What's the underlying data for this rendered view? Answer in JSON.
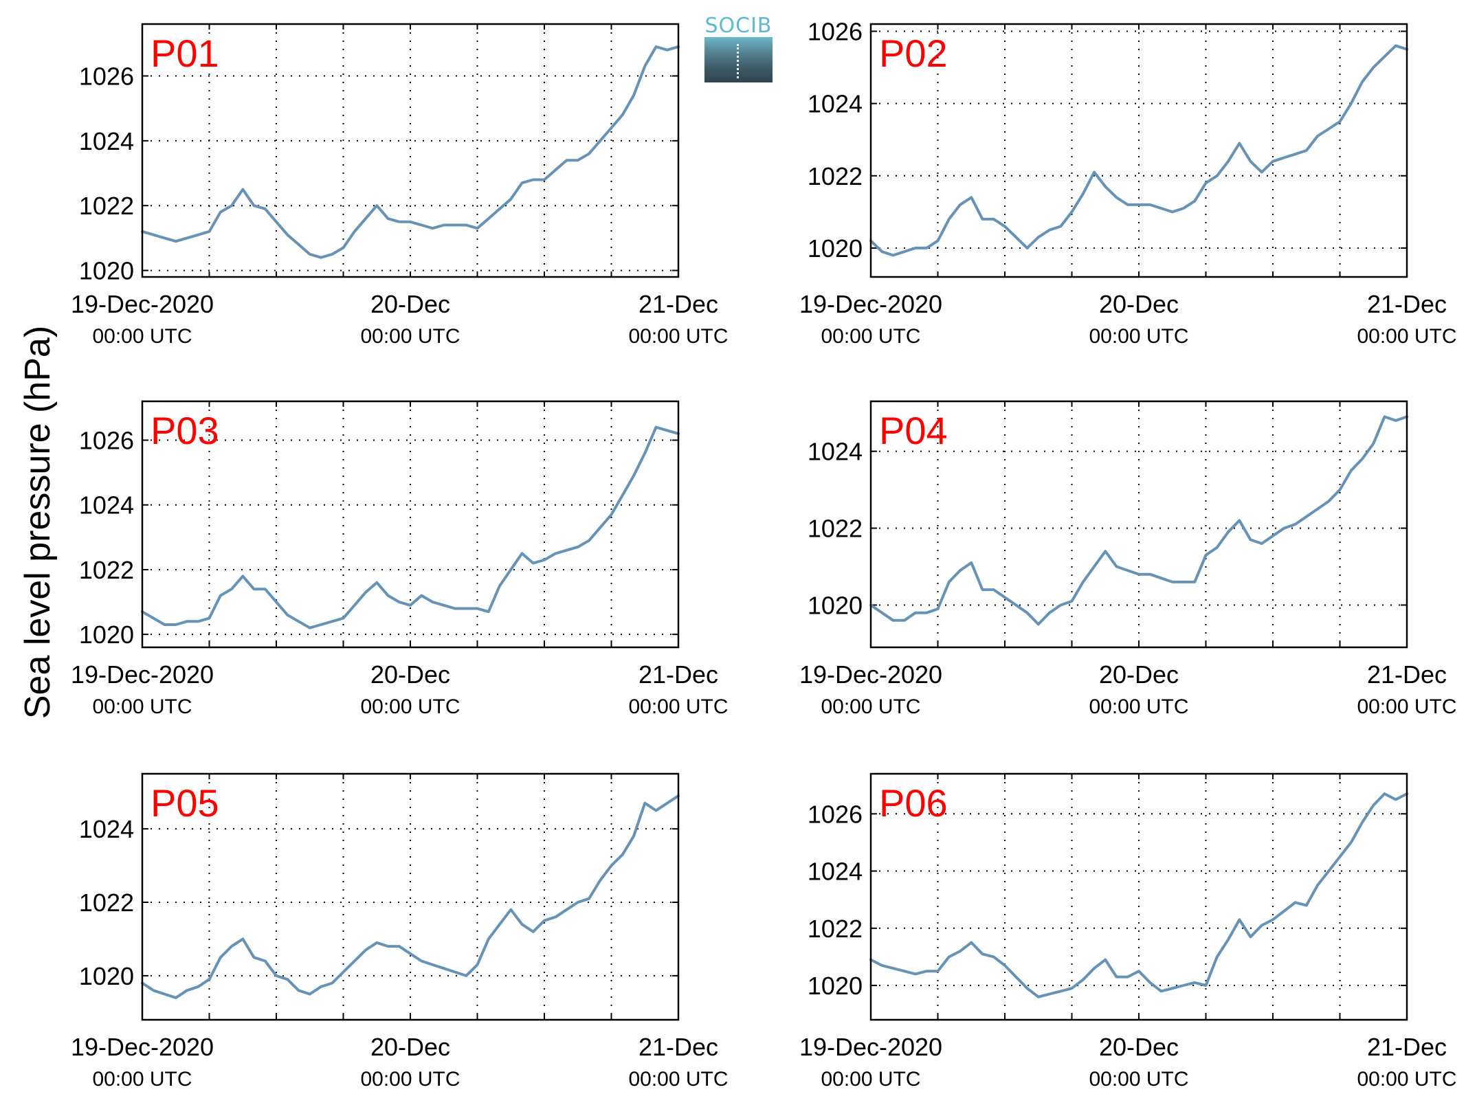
{
  "ylabel": "Sea level pressure (hPa)",
  "logo": {
    "text": "SOCIB"
  },
  "colors": {
    "line": "#6693b5",
    "panel_label": "#ff0000",
    "grid": "#000000"
  },
  "chart_data": [
    {
      "type": "line",
      "title": "P01",
      "xlim": [
        "2020-12-19T00:00Z",
        "2020-12-21T00:00Z"
      ],
      "x_ticks": [
        {
          "label": "19-Dec-2020",
          "sub": "00:00 UTC"
        },
        {
          "label": "20-Dec",
          "sub": "00:00 UTC"
        },
        {
          "label": "21-Dec",
          "sub": "00:00 UTC"
        }
      ],
      "ylim": [
        1019.8,
        1027.6
      ],
      "yticks": [
        1020,
        1022,
        1024,
        1026
      ],
      "grid": true,
      "series": [
        {
          "x": [
            "2020-12-19T00:00Z",
            "2020-12-19T01:00Z",
            "2020-12-19T02:00Z",
            "2020-12-19T03:00Z",
            "2020-12-19T04:00Z",
            "2020-12-19T05:00Z",
            "2020-12-19T06:00Z",
            "2020-12-19T07:00Z",
            "2020-12-19T08:00Z",
            "2020-12-19T09:00Z",
            "2020-12-19T10:00Z",
            "2020-12-19T11:00Z",
            "2020-12-19T12:00Z",
            "2020-12-19T13:00Z",
            "2020-12-19T14:00Z",
            "2020-12-19T15:00Z",
            "2020-12-19T16:00Z",
            "2020-12-19T17:00Z",
            "2020-12-19T18:00Z",
            "2020-12-19T19:00Z",
            "2020-12-19T20:00Z",
            "2020-12-19T21:00Z",
            "2020-12-19T22:00Z",
            "2020-12-19T23:00Z",
            "2020-12-20T00:00Z",
            "2020-12-20T01:00Z",
            "2020-12-20T02:00Z",
            "2020-12-20T03:00Z",
            "2020-12-20T04:00Z",
            "2020-12-20T05:00Z",
            "2020-12-20T06:00Z",
            "2020-12-20T07:00Z",
            "2020-12-20T08:00Z",
            "2020-12-20T09:00Z",
            "2020-12-20T10:00Z",
            "2020-12-20T11:00Z",
            "2020-12-20T12:00Z",
            "2020-12-20T13:00Z",
            "2020-12-20T14:00Z",
            "2020-12-20T15:00Z",
            "2020-12-20T16:00Z",
            "2020-12-20T17:00Z",
            "2020-12-20T18:00Z",
            "2020-12-20T19:00Z",
            "2020-12-20T20:00Z",
            "2020-12-20T21:00Z",
            "2020-12-20T22:00Z",
            "2020-12-20T23:00Z",
            "2020-12-21T00:00Z"
          ],
          "y": [
            1021.2,
            1021.1,
            1021.0,
            1020.9,
            1021.0,
            1021.1,
            1021.2,
            1021.8,
            1022.0,
            1022.5,
            1022.0,
            1021.9,
            1021.5,
            1021.1,
            1020.8,
            1020.5,
            1020.4,
            1020.5,
            1020.7,
            1021.2,
            1021.6,
            1022.0,
            1021.6,
            1021.5,
            1021.5,
            1021.4,
            1021.3,
            1021.4,
            1021.4,
            1021.4,
            1021.3,
            1021.6,
            1021.9,
            1022.2,
            1022.7,
            1022.8,
            1022.8,
            1023.1,
            1023.4,
            1023.4,
            1023.6,
            1024.0,
            1024.4,
            1024.8,
            1025.4,
            1026.3,
            1026.9,
            1026.8,
            1026.9
          ]
        }
      ]
    },
    {
      "type": "line",
      "title": "P02",
      "xlim": [
        "2020-12-19T00:00Z",
        "2020-12-21T00:00Z"
      ],
      "x_ticks": [
        {
          "label": "19-Dec-2020",
          "sub": "00:00 UTC"
        },
        {
          "label": "20-Dec",
          "sub": "00:00 UTC"
        },
        {
          "label": "21-Dec",
          "sub": "00:00 UTC"
        }
      ],
      "ylim": [
        1019.2,
        1026.2
      ],
      "yticks": [
        1020,
        1022,
        1024,
        1026
      ],
      "grid": true,
      "series": [
        {
          "x": [
            "2020-12-19T00:00Z",
            "2020-12-19T01:00Z",
            "2020-12-19T02:00Z",
            "2020-12-19T03:00Z",
            "2020-12-19T04:00Z",
            "2020-12-19T05:00Z",
            "2020-12-19T06:00Z",
            "2020-12-19T07:00Z",
            "2020-12-19T08:00Z",
            "2020-12-19T09:00Z",
            "2020-12-19T10:00Z",
            "2020-12-19T11:00Z",
            "2020-12-19T12:00Z",
            "2020-12-19T13:00Z",
            "2020-12-19T14:00Z",
            "2020-12-19T15:00Z",
            "2020-12-19T16:00Z",
            "2020-12-19T17:00Z",
            "2020-12-19T18:00Z",
            "2020-12-19T19:00Z",
            "2020-12-19T20:00Z",
            "2020-12-19T21:00Z",
            "2020-12-19T22:00Z",
            "2020-12-19T23:00Z",
            "2020-12-20T00:00Z",
            "2020-12-20T01:00Z",
            "2020-12-20T02:00Z",
            "2020-12-20T03:00Z",
            "2020-12-20T04:00Z",
            "2020-12-20T05:00Z",
            "2020-12-20T06:00Z",
            "2020-12-20T07:00Z",
            "2020-12-20T08:00Z",
            "2020-12-20T09:00Z",
            "2020-12-20T10:00Z",
            "2020-12-20T11:00Z",
            "2020-12-20T12:00Z",
            "2020-12-20T13:00Z",
            "2020-12-20T14:00Z",
            "2020-12-20T15:00Z",
            "2020-12-20T16:00Z",
            "2020-12-20T17:00Z",
            "2020-12-20T18:00Z",
            "2020-12-20T19:00Z",
            "2020-12-20T20:00Z",
            "2020-12-20T21:00Z",
            "2020-12-20T22:00Z",
            "2020-12-20T23:00Z",
            "2020-12-21T00:00Z"
          ],
          "y": [
            1020.2,
            1019.9,
            1019.8,
            1019.9,
            1020.0,
            1020.0,
            1020.2,
            1020.8,
            1021.2,
            1021.4,
            1020.8,
            1020.8,
            1020.6,
            1020.3,
            1020.0,
            1020.3,
            1020.5,
            1020.6,
            1021.0,
            1021.5,
            1022.1,
            1021.7,
            1021.4,
            1021.2,
            1021.2,
            1021.2,
            1021.1,
            1021.0,
            1021.1,
            1021.3,
            1021.8,
            1022.0,
            1022.4,
            1022.9,
            1022.4,
            1022.1,
            1022.4,
            1022.5,
            1022.6,
            1022.7,
            1023.1,
            1023.3,
            1023.5,
            1024.0,
            1024.6,
            1025.0,
            1025.3,
            1025.6,
            1025.5
          ]
        }
      ]
    },
    {
      "type": "line",
      "title": "P03",
      "xlim": [
        "2020-12-19T00:00Z",
        "2020-12-21T00:00Z"
      ],
      "x_ticks": [
        {
          "label": "19-Dec-2020",
          "sub": "00:00 UTC"
        },
        {
          "label": "20-Dec",
          "sub": "00:00 UTC"
        },
        {
          "label": "21-Dec",
          "sub": "00:00 UTC"
        }
      ],
      "ylim": [
        1019.6,
        1027.2
      ],
      "yticks": [
        1020,
        1022,
        1024,
        1026
      ],
      "grid": true,
      "series": [
        {
          "x": [
            "2020-12-19T00:00Z",
            "2020-12-19T01:00Z",
            "2020-12-19T02:00Z",
            "2020-12-19T03:00Z",
            "2020-12-19T04:00Z",
            "2020-12-19T05:00Z",
            "2020-12-19T06:00Z",
            "2020-12-19T07:00Z",
            "2020-12-19T08:00Z",
            "2020-12-19T09:00Z",
            "2020-12-19T10:00Z",
            "2020-12-19T11:00Z",
            "2020-12-19T12:00Z",
            "2020-12-19T13:00Z",
            "2020-12-19T14:00Z",
            "2020-12-19T15:00Z",
            "2020-12-19T16:00Z",
            "2020-12-19T17:00Z",
            "2020-12-19T18:00Z",
            "2020-12-19T19:00Z",
            "2020-12-19T20:00Z",
            "2020-12-19T21:00Z",
            "2020-12-19T22:00Z",
            "2020-12-19T23:00Z",
            "2020-12-20T00:00Z",
            "2020-12-20T01:00Z",
            "2020-12-20T02:00Z",
            "2020-12-20T03:00Z",
            "2020-12-20T04:00Z",
            "2020-12-20T05:00Z",
            "2020-12-20T06:00Z",
            "2020-12-20T07:00Z",
            "2020-12-20T08:00Z",
            "2020-12-20T09:00Z",
            "2020-12-20T10:00Z",
            "2020-12-20T11:00Z",
            "2020-12-20T12:00Z",
            "2020-12-20T13:00Z",
            "2020-12-20T14:00Z",
            "2020-12-20T15:00Z",
            "2020-12-20T16:00Z",
            "2020-12-20T17:00Z",
            "2020-12-20T18:00Z",
            "2020-12-20T19:00Z",
            "2020-12-20T20:00Z",
            "2020-12-20T21:00Z",
            "2020-12-20T22:00Z",
            "2020-12-20T23:00Z",
            "2020-12-21T00:00Z"
          ],
          "y": [
            1020.7,
            1020.5,
            1020.3,
            1020.3,
            1020.4,
            1020.4,
            1020.5,
            1021.2,
            1021.4,
            1021.8,
            1021.4,
            1021.4,
            1021.0,
            1020.6,
            1020.4,
            1020.2,
            1020.3,
            1020.4,
            1020.5,
            1020.9,
            1021.3,
            1021.6,
            1021.2,
            1021.0,
            1020.9,
            1021.2,
            1021.0,
            1020.9,
            1020.8,
            1020.8,
            1020.8,
            1020.7,
            1021.5,
            1022.0,
            1022.5,
            1022.2,
            1022.3,
            1022.5,
            1022.6,
            1022.7,
            1022.9,
            1023.3,
            1023.7,
            1024.3,
            1024.9,
            1025.6,
            1026.4,
            1026.3,
            1026.2
          ]
        }
      ]
    },
    {
      "type": "line",
      "title": "P04",
      "xlim": [
        "2020-12-19T00:00Z",
        "2020-12-21T00:00Z"
      ],
      "x_ticks": [
        {
          "label": "19-Dec-2020",
          "sub": "00:00 UTC"
        },
        {
          "label": "20-Dec",
          "sub": "00:00 UTC"
        },
        {
          "label": "21-Dec",
          "sub": "00:00 UTC"
        }
      ],
      "ylim": [
        1018.9,
        1025.3
      ],
      "yticks": [
        1020,
        1022,
        1024
      ],
      "grid": true,
      "series": [
        {
          "x": [
            "2020-12-19T00:00Z",
            "2020-12-19T01:00Z",
            "2020-12-19T02:00Z",
            "2020-12-19T03:00Z",
            "2020-12-19T04:00Z",
            "2020-12-19T05:00Z",
            "2020-12-19T06:00Z",
            "2020-12-19T07:00Z",
            "2020-12-19T08:00Z",
            "2020-12-19T09:00Z",
            "2020-12-19T10:00Z",
            "2020-12-19T11:00Z",
            "2020-12-19T12:00Z",
            "2020-12-19T13:00Z",
            "2020-12-19T14:00Z",
            "2020-12-19T15:00Z",
            "2020-12-19T16:00Z",
            "2020-12-19T17:00Z",
            "2020-12-19T18:00Z",
            "2020-12-19T19:00Z",
            "2020-12-19T20:00Z",
            "2020-12-19T21:00Z",
            "2020-12-19T22:00Z",
            "2020-12-19T23:00Z",
            "2020-12-20T00:00Z",
            "2020-12-20T01:00Z",
            "2020-12-20T02:00Z",
            "2020-12-20T03:00Z",
            "2020-12-20T04:00Z",
            "2020-12-20T05:00Z",
            "2020-12-20T06:00Z",
            "2020-12-20T07:00Z",
            "2020-12-20T08:00Z",
            "2020-12-20T09:00Z",
            "2020-12-20T10:00Z",
            "2020-12-20T11:00Z",
            "2020-12-20T12:00Z",
            "2020-12-20T13:00Z",
            "2020-12-20T14:00Z",
            "2020-12-20T15:00Z",
            "2020-12-20T16:00Z",
            "2020-12-20T17:00Z",
            "2020-12-20T18:00Z",
            "2020-12-20T19:00Z",
            "2020-12-20T20:00Z",
            "2020-12-20T21:00Z",
            "2020-12-20T22:00Z",
            "2020-12-20T23:00Z",
            "2020-12-21T00:00Z"
          ],
          "y": [
            1020.0,
            1019.8,
            1019.6,
            1019.6,
            1019.8,
            1019.8,
            1019.9,
            1020.6,
            1020.9,
            1021.1,
            1020.4,
            1020.4,
            1020.2,
            1020.0,
            1019.8,
            1019.5,
            1019.8,
            1020.0,
            1020.1,
            1020.6,
            1021.0,
            1021.4,
            1021.0,
            1020.9,
            1020.8,
            1020.8,
            1020.7,
            1020.6,
            1020.6,
            1020.6,
            1021.3,
            1021.5,
            1021.9,
            1022.2,
            1021.7,
            1021.6,
            1021.8,
            1022.0,
            1022.1,
            1022.3,
            1022.5,
            1022.7,
            1023.0,
            1023.5,
            1023.8,
            1024.2,
            1024.9,
            1024.8,
            1024.9
          ]
        }
      ]
    },
    {
      "type": "line",
      "title": "P05",
      "xlim": [
        "2020-12-19T00:00Z",
        "2020-12-21T00:00Z"
      ],
      "x_ticks": [
        {
          "label": "19-Dec-2020",
          "sub": "00:00 UTC"
        },
        {
          "label": "20-Dec",
          "sub": "00:00 UTC"
        },
        {
          "label": "21-Dec",
          "sub": "00:00 UTC"
        }
      ],
      "ylim": [
        1018.8,
        1025.5
      ],
      "yticks": [
        1020,
        1022,
        1024
      ],
      "grid": true,
      "series": [
        {
          "x": [
            "2020-12-19T00:00Z",
            "2020-12-19T01:00Z",
            "2020-12-19T02:00Z",
            "2020-12-19T03:00Z",
            "2020-12-19T04:00Z",
            "2020-12-19T05:00Z",
            "2020-12-19T06:00Z",
            "2020-12-19T07:00Z",
            "2020-12-19T08:00Z",
            "2020-12-19T09:00Z",
            "2020-12-19T10:00Z",
            "2020-12-19T11:00Z",
            "2020-12-19T12:00Z",
            "2020-12-19T13:00Z",
            "2020-12-19T14:00Z",
            "2020-12-19T15:00Z",
            "2020-12-19T16:00Z",
            "2020-12-19T17:00Z",
            "2020-12-19T18:00Z",
            "2020-12-19T19:00Z",
            "2020-12-19T20:00Z",
            "2020-12-19T21:00Z",
            "2020-12-19T22:00Z",
            "2020-12-19T23:00Z",
            "2020-12-20T00:00Z",
            "2020-12-20T01:00Z",
            "2020-12-20T02:00Z",
            "2020-12-20T03:00Z",
            "2020-12-20T04:00Z",
            "2020-12-20T05:00Z",
            "2020-12-20T06:00Z",
            "2020-12-20T07:00Z",
            "2020-12-20T08:00Z",
            "2020-12-20T09:00Z",
            "2020-12-20T10:00Z",
            "2020-12-20T11:00Z",
            "2020-12-20T12:00Z",
            "2020-12-20T13:00Z",
            "2020-12-20T14:00Z",
            "2020-12-20T15:00Z",
            "2020-12-20T16:00Z",
            "2020-12-20T17:00Z",
            "2020-12-20T18:00Z",
            "2020-12-20T19:00Z",
            "2020-12-20T20:00Z",
            "2020-12-20T21:00Z",
            "2020-12-20T22:00Z",
            "2020-12-20T23:00Z",
            "2020-12-21T00:00Z"
          ],
          "y": [
            1019.8,
            1019.6,
            1019.5,
            1019.4,
            1019.6,
            1019.7,
            1019.9,
            1020.5,
            1020.8,
            1021.0,
            1020.5,
            1020.4,
            1020.0,
            1019.9,
            1019.6,
            1019.5,
            1019.7,
            1019.8,
            1020.1,
            1020.4,
            1020.7,
            1020.9,
            1020.8,
            1020.8,
            1020.6,
            1020.4,
            1020.3,
            1020.2,
            1020.1,
            1020.0,
            1020.3,
            1021.0,
            1021.4,
            1021.8,
            1021.4,
            1021.2,
            1021.5,
            1021.6,
            1021.8,
            1022.0,
            1022.1,
            1022.6,
            1023.0,
            1023.3,
            1023.8,
            1024.7,
            1024.5,
            1024.7,
            1024.9
          ]
        }
      ]
    },
    {
      "type": "line",
      "title": "P06",
      "xlim": [
        "2020-12-19T00:00Z",
        "2020-12-21T00:00Z"
      ],
      "x_ticks": [
        {
          "label": "19-Dec-2020",
          "sub": "00:00 UTC"
        },
        {
          "label": "20-Dec",
          "sub": "00:00 UTC"
        },
        {
          "label": "21-Dec",
          "sub": "00:00 UTC"
        }
      ],
      "ylim": [
        1018.8,
        1027.4
      ],
      "yticks": [
        1020,
        1022,
        1024,
        1026
      ],
      "grid": true,
      "series": [
        {
          "x": [
            "2020-12-19T00:00Z",
            "2020-12-19T01:00Z",
            "2020-12-19T02:00Z",
            "2020-12-19T03:00Z",
            "2020-12-19T04:00Z",
            "2020-12-19T05:00Z",
            "2020-12-19T06:00Z",
            "2020-12-19T07:00Z",
            "2020-12-19T08:00Z",
            "2020-12-19T09:00Z",
            "2020-12-19T10:00Z",
            "2020-12-19T11:00Z",
            "2020-12-19T12:00Z",
            "2020-12-19T13:00Z",
            "2020-12-19T14:00Z",
            "2020-12-19T15:00Z",
            "2020-12-19T16:00Z",
            "2020-12-19T17:00Z",
            "2020-12-19T18:00Z",
            "2020-12-19T19:00Z",
            "2020-12-19T20:00Z",
            "2020-12-19T21:00Z",
            "2020-12-19T22:00Z",
            "2020-12-19T23:00Z",
            "2020-12-20T00:00Z",
            "2020-12-20T01:00Z",
            "2020-12-20T02:00Z",
            "2020-12-20T03:00Z",
            "2020-12-20T04:00Z",
            "2020-12-20T05:00Z",
            "2020-12-20T06:00Z",
            "2020-12-20T07:00Z",
            "2020-12-20T08:00Z",
            "2020-12-20T09:00Z",
            "2020-12-20T10:00Z",
            "2020-12-20T11:00Z",
            "2020-12-20T12:00Z",
            "2020-12-20T13:00Z",
            "2020-12-20T14:00Z",
            "2020-12-20T15:00Z",
            "2020-12-20T16:00Z",
            "2020-12-20T17:00Z",
            "2020-12-20T18:00Z",
            "2020-12-20T19:00Z",
            "2020-12-20T20:00Z",
            "2020-12-20T21:00Z",
            "2020-12-20T22:00Z",
            "2020-12-20T23:00Z",
            "2020-12-21T00:00Z"
          ],
          "y": [
            1020.9,
            1020.7,
            1020.6,
            1020.5,
            1020.4,
            1020.5,
            1020.5,
            1021.0,
            1021.2,
            1021.5,
            1021.1,
            1021.0,
            1020.7,
            1020.3,
            1019.9,
            1019.6,
            1019.7,
            1019.8,
            1019.9,
            1020.2,
            1020.6,
            1020.9,
            1020.3,
            1020.3,
            1020.5,
            1020.1,
            1019.8,
            1019.9,
            1020.0,
            1020.1,
            1020.0,
            1021.0,
            1021.6,
            1022.3,
            1021.7,
            1022.1,
            1022.3,
            1022.6,
            1022.9,
            1022.8,
            1023.5,
            1024.0,
            1024.5,
            1025.0,
            1025.7,
            1026.3,
            1026.7,
            1026.5,
            1026.7
          ]
        }
      ]
    }
  ]
}
